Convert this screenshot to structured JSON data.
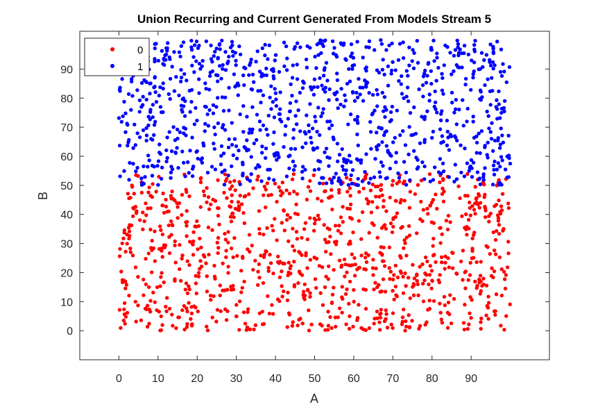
{
  "chart_data": {
    "type": "scatter",
    "title": "Union Recurring and Current Generated From Models Stream 5",
    "xlabel": "A",
    "ylabel": "B",
    "xlim": [
      -10,
      110
    ],
    "ylim": [
      -10,
      103
    ],
    "xticks": [
      0,
      10,
      20,
      30,
      40,
      50,
      60,
      70,
      80,
      90
    ],
    "yticks": [
      0,
      10,
      20,
      30,
      40,
      50,
      60,
      70,
      80,
      90
    ],
    "grid": false,
    "legend_position": "top-left",
    "series": [
      {
        "name": "0",
        "color": "#ff0000",
        "count": 1000,
        "x_range": [
          0,
          100
        ],
        "y_range": [
          0,
          54
        ]
      },
      {
        "name": "1",
        "color": "#0000ff",
        "count": 1000,
        "x_range": [
          0,
          100
        ],
        "y_range": [
          50,
          100
        ]
      }
    ]
  }
}
